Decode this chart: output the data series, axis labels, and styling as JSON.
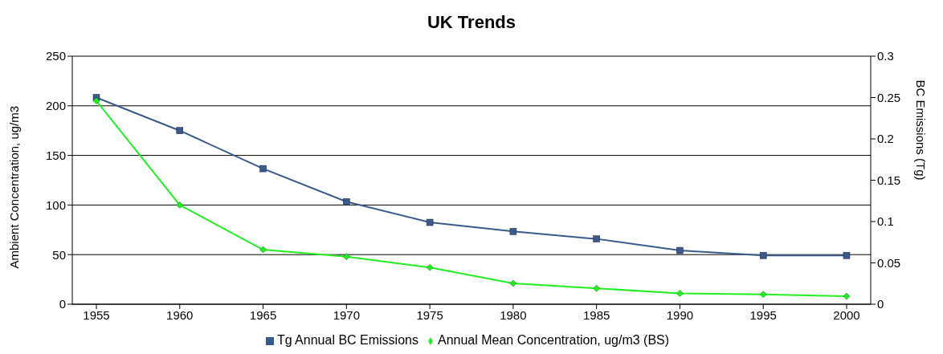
{
  "chart_data": {
    "type": "line",
    "title": "UK Trends",
    "ylabel": "Ambient Concentration, ug/m3",
    "y2label": "BC Emissions (Tg)",
    "categories": [
      "1955",
      "1960",
      "1965",
      "1970",
      "1975",
      "1980",
      "1985",
      "1990",
      "1995",
      "2000"
    ],
    "series": [
      {
        "name": "Tg Annual BC Emissions",
        "color": "#3a5a8c",
        "axis": "y2",
        "marker": "square",
        "values": [
          0.25,
          0.21,
          0.164,
          0.124,
          0.099,
          0.088,
          0.079,
          0.065,
          0.059,
          0.059
        ]
      },
      {
        "name": "Annual Mean Concentration, ug/m3 (BS)",
        "color": "#22ee22",
        "marker": "diamond",
        "values": [
          205,
          100,
          55,
          48,
          37,
          21,
          16,
          11,
          10,
          8
        ]
      }
    ],
    "ylim": [
      0,
      250
    ],
    "yticks": [
      0,
      50,
      100,
      150,
      200,
      250
    ],
    "y2lim": [
      0,
      0.3
    ],
    "y2ticks": [
      0,
      0.05,
      0.1,
      0.15,
      0.2,
      0.25,
      0.3
    ],
    "grid": "y",
    "legend": "bottom"
  }
}
